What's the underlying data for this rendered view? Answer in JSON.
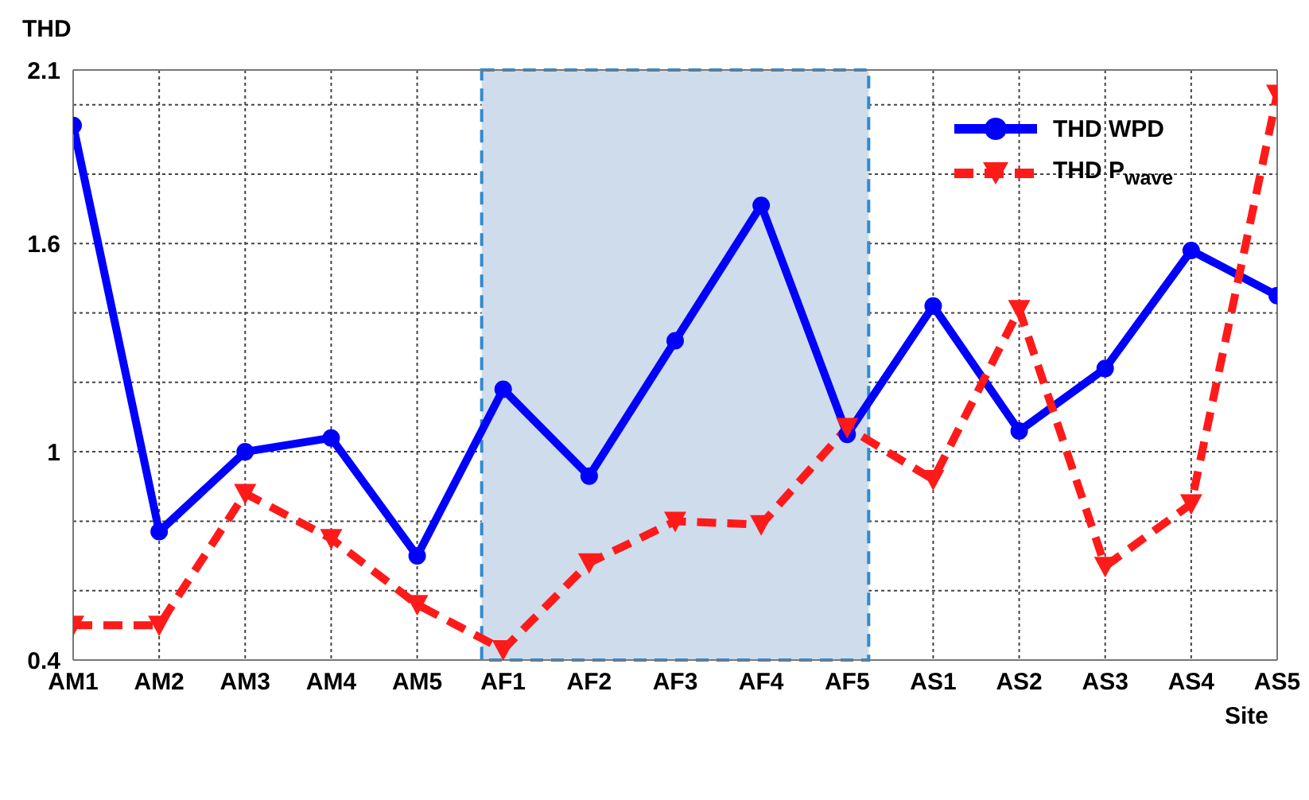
{
  "chart_data": {
    "type": "line",
    "ylabel": "THD",
    "xlabel": "Site",
    "categories": [
      "AM1",
      "AM2",
      "AM3",
      "AM4",
      "AM5",
      "AF1",
      "AF2",
      "AF3",
      "AF4",
      "AF5",
      "AS1",
      "AS2",
      "AS3",
      "AS4",
      "AS5"
    ],
    "series": [
      {
        "name": "THD WPD",
        "color": "#0000ff",
        "marker": "circle",
        "line_style": "solid",
        "values": [
          1.94,
          0.77,
          1.0,
          1.04,
          0.7,
          1.18,
          0.93,
          1.32,
          1.71,
          1.05,
          1.42,
          1.06,
          1.24,
          1.58,
          1.45
        ]
      },
      {
        "name": "THD P$_{wave}$",
        "color": "#ff1a1a",
        "marker": "triangle",
        "line_style": "dashed",
        "values": [
          0.5,
          0.5,
          0.88,
          0.75,
          0.56,
          0.43,
          0.68,
          0.8,
          0.79,
          1.07,
          0.92,
          1.41,
          0.67,
          0.85,
          2.03
        ]
      }
    ],
    "ylim": [
      0.4,
      2.1
    ],
    "yticks": [
      0.4,
      {
        "value": 0.6,
        "label": null
      },
      {
        "value": 0.8,
        "label": null
      },
      1,
      {
        "value": 1.2,
        "label": null
      },
      {
        "value": 1.4,
        "label": null
      },
      1.6,
      {
        "value": 1.8,
        "label": null
      },
      {
        "value": 2.0,
        "label": null
      },
      2.1
    ],
    "bands": [
      {
        "axis": "x",
        "from": "AF1",
        "to": "AF5",
        "color": "#cfdcec"
      }
    ],
    "grid": true,
    "legend": "top right"
  }
}
